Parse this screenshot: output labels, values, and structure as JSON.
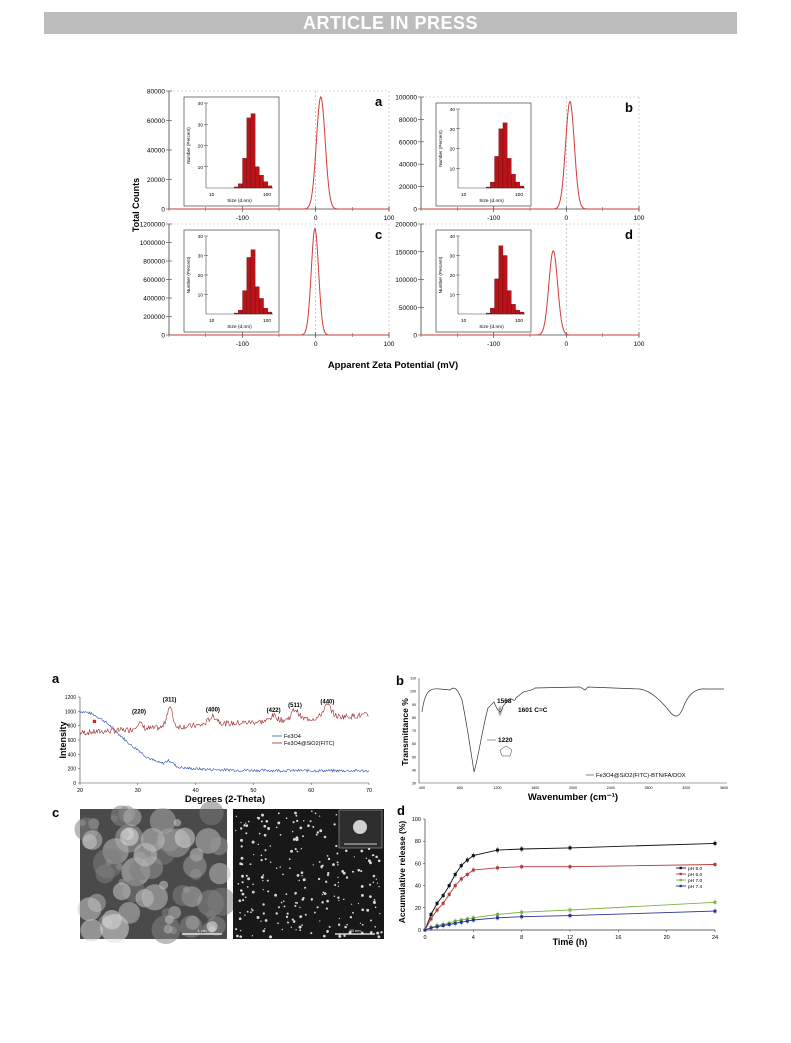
{
  "header": {
    "banner": "ARTICLE IN PRESS"
  },
  "figure1": {
    "ylabel": "Total Counts",
    "xlabel": "Apparent Zeta Potential (mV)",
    "inset_ylabel": "Number (Percent)",
    "inset_xlabel": "Size (d.nm)",
    "panels": [
      {
        "letter": "a",
        "yticks": [
          "80000",
          "60000",
          "40000",
          "20000",
          "0"
        ],
        "ymax": 80000,
        "peak_x": 7,
        "peak_y": 76000,
        "width": 6,
        "xticks": [
          "-100",
          "0",
          "100"
        ],
        "inset_yticks": [
          "40",
          "30",
          "20",
          "10"
        ],
        "inset_xticks": [
          "10",
          "100"
        ],
        "hist": [
          0.5,
          2,
          14,
          33,
          35,
          10,
          6,
          3,
          1
        ]
      },
      {
        "letter": "b",
        "yticks": [
          "100000",
          "80000",
          "60000",
          "40000",
          "20000",
          "0"
        ],
        "ymax": 100000,
        "peak_x": 5,
        "peak_y": 96000,
        "width": 6,
        "xticks": [
          "-100",
          "0",
          "100"
        ],
        "inset_yticks": [
          "40",
          "30",
          "20",
          "10"
        ],
        "inset_xticks": [
          "10",
          "100"
        ],
        "hist": [
          0.5,
          3,
          16,
          30,
          33,
          15,
          7,
          3,
          1
        ]
      },
      {
        "letter": "c",
        "yticks": [
          "1200000",
          "1000000",
          "800000",
          "600000",
          "400000",
          "200000",
          "0"
        ],
        "ymax": 1200000,
        "peak_x": -1,
        "peak_y": 1150000,
        "width": 5,
        "xticks": [
          "-100",
          "0",
          "100"
        ],
        "inset_yticks": [
          "40",
          "30",
          "20",
          "10"
        ],
        "inset_xticks": [
          "10",
          "100"
        ],
        "hist": [
          0.5,
          2,
          12,
          29,
          33,
          14,
          8,
          3,
          1
        ]
      },
      {
        "letter": "d",
        "yticks": [
          "200000",
          "150000",
          "100000",
          "50000",
          "0"
        ],
        "ymax": 200000,
        "peak_x": -18,
        "peak_y": 152000,
        "width": 6,
        "xticks": [
          "-100",
          "0",
          "100"
        ],
        "inset_yticks": [
          "40",
          "30",
          "20",
          "10"
        ],
        "inset_xticks": [
          "10",
          "100"
        ],
        "hist": [
          0.5,
          3,
          18,
          35,
          30,
          12,
          5,
          2,
          1
        ]
      }
    ]
  },
  "figure2": {
    "a": {
      "letter": "a",
      "ylabel": "Intensity",
      "xlabel": "Degrees (2-Theta)",
      "xticks": [
        "20",
        "30",
        "40",
        "50",
        "60",
        "70"
      ],
      "yticks": [
        "1200",
        "1000",
        "800",
        "600",
        "400",
        "200",
        "0"
      ],
      "legend": [
        "Fe3O4",
        "Fe3O4@SiO2(FITC)"
      ],
      "peaks": [
        "(220)",
        "(311)",
        "(400)",
        "(422)",
        "(511)",
        "(440)"
      ],
      "colors": {
        "fe3o4": "#2e4fb8",
        "coated": "#9b2a2a"
      }
    },
    "b": {
      "letter": "b",
      "ylabel": "Transmittance %",
      "xlabel": "Wavenumber (cm⁻¹)",
      "legend": "Fe3O4@SiO2(FITC)-BTN/FA/DOX",
      "annotations": [
        "1568",
        "1601 C=C",
        "1220"
      ],
      "yticks": [
        "110",
        "100",
        "90",
        "80",
        "70",
        "60",
        "50",
        "40",
        "30"
      ],
      "xticks": [
        "400",
        "800",
        "1200",
        "1600",
        "2000",
        "2400",
        "2800",
        "3200",
        "3600"
      ]
    },
    "c": {
      "letter": "c",
      "scale_left": "1 µm",
      "scale_right": "50 nm"
    },
    "d": {
      "letter": "d",
      "ylabel": "Accumulative release (%)",
      "xlabel": "Time (h)",
      "xticks": [
        "0",
        "4",
        "8",
        "12",
        "16",
        "20",
        "24"
      ],
      "yticks": [
        "100",
        "80",
        "60",
        "40",
        "20",
        "0"
      ],
      "legend": [
        "pH 5.0",
        "pH 6.0",
        "pH 7.0",
        "pH 7.4"
      ]
    }
  },
  "chart_data": [
    {
      "type": "line",
      "title": "",
      "xlabel": "Time (h)",
      "ylabel": "Accumulative release (%)",
      "ylim": [
        0,
        100
      ],
      "xlim": [
        0,
        24
      ],
      "x": [
        0,
        0.5,
        1,
        1.5,
        2,
        2.5,
        3,
        3.5,
        4,
        6,
        8,
        12,
        24
      ],
      "series": [
        {
          "name": "pH 5.0",
          "color": "#111111",
          "values": [
            0,
            14,
            24,
            31,
            40,
            50,
            58,
            63,
            67,
            72,
            73,
            74,
            78
          ]
        },
        {
          "name": "pH 6.0",
          "color": "#b33a3a",
          "values": [
            0,
            10,
            18,
            24,
            32,
            40,
            46,
            50,
            54,
            56,
            57,
            57,
            59
          ]
        },
        {
          "name": "pH 7.0",
          "color": "#7cb342",
          "values": [
            0,
            2,
            4,
            5,
            6,
            8,
            9,
            10,
            11,
            14,
            16,
            18,
            25
          ]
        },
        {
          "name": "pH 7.4",
          "color": "#283593",
          "values": [
            0,
            2,
            3,
            4,
            5,
            6,
            7,
            8,
            9,
            11,
            12,
            13,
            17
          ]
        }
      ],
      "grid": false,
      "legend": "right"
    }
  ]
}
